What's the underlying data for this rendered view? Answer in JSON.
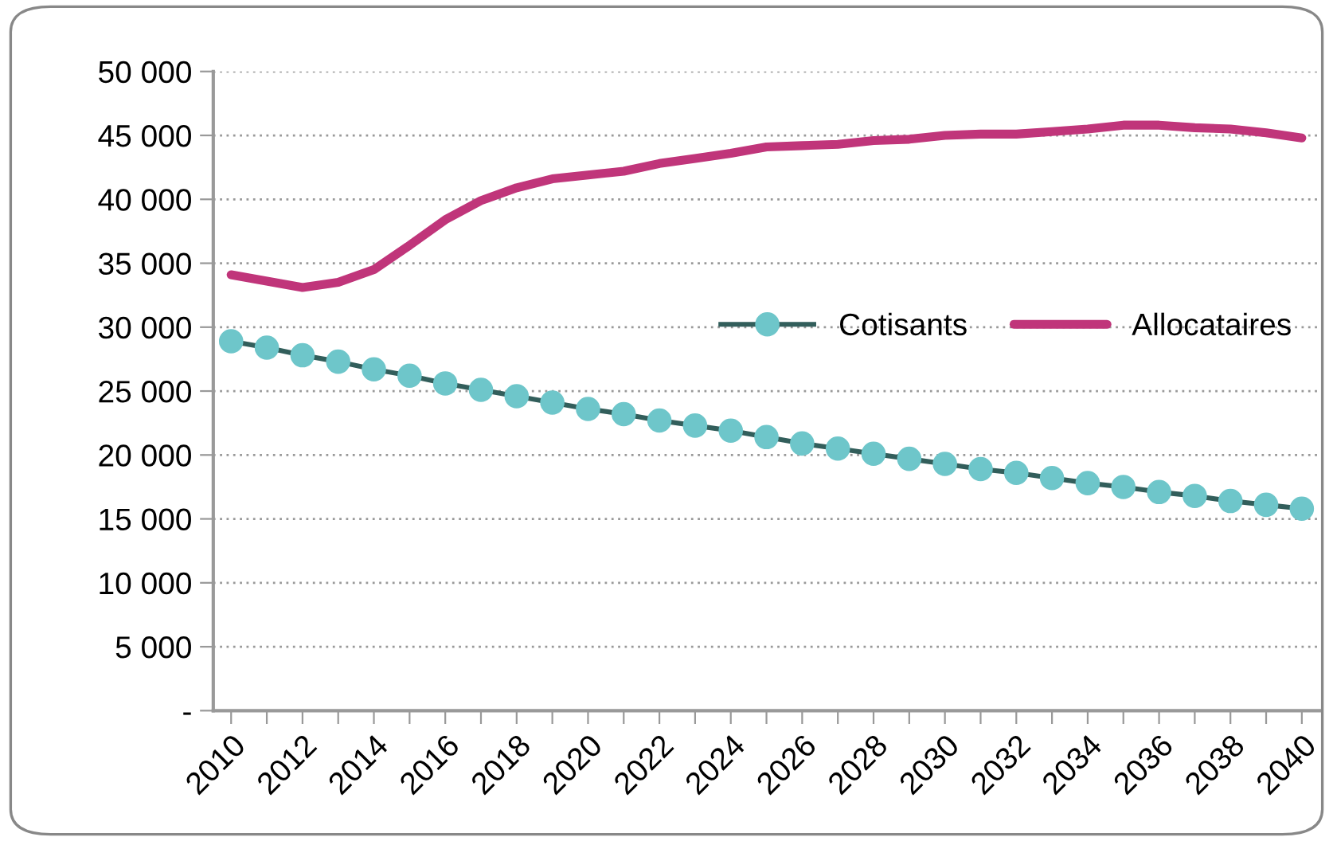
{
  "chart_data": {
    "type": "line",
    "categories": [
      "2010",
      null,
      "2012",
      null,
      "2014",
      null,
      "2016",
      null,
      "2018",
      null,
      "2020",
      null,
      "2022",
      null,
      "2024",
      null,
      "2026",
      null,
      "2028",
      null,
      "2030",
      null,
      "2032",
      null,
      "2034",
      null,
      "2036",
      null,
      "2038",
      null,
      "2040"
    ],
    "series": [
      {
        "name": "Cotisants",
        "color": "#6ec6ca",
        "marker": "circle",
        "values": [
          28900,
          28400,
          27800,
          27300,
          26700,
          26200,
          25600,
          25100,
          24600,
          24100,
          23600,
          23200,
          22700,
          22300,
          21900,
          21400,
          20900,
          20500,
          20100,
          19700,
          19300,
          18900,
          18600,
          18200,
          17800,
          17500,
          17100,
          16800,
          16400,
          16100,
          15800
        ]
      },
      {
        "name": "Allocataires",
        "color": "#c0357a",
        "marker": "none",
        "values": [
          34100,
          33600,
          33100,
          33500,
          34500,
          36400,
          38400,
          39900,
          40900,
          41600,
          41900,
          42200,
          42800,
          43200,
          43600,
          44100,
          44200,
          44300,
          44600,
          44700,
          45000,
          45100,
          45100,
          45300,
          45500,
          45800,
          45800,
          45600,
          45500,
          45200,
          44800
        ]
      }
    ],
    "ylim": [
      0,
      50000
    ],
    "yticks": [
      {
        "value": 0,
        "label": "-"
      },
      {
        "value": 5000,
        "label": "5 000"
      },
      {
        "value": 10000,
        "label": "10 000"
      },
      {
        "value": 15000,
        "label": "15 000"
      },
      {
        "value": 20000,
        "label": "20 000"
      },
      {
        "value": 25000,
        "label": "25 000"
      },
      {
        "value": 30000,
        "label": "30 000"
      },
      {
        "value": 35000,
        "label": "35 000"
      },
      {
        "value": 40000,
        "label": "40 000"
      },
      {
        "value": 45000,
        "label": "45 000"
      },
      {
        "value": 50000,
        "label": "50 000"
      }
    ],
    "grid": "y",
    "legend": "center right"
  }
}
